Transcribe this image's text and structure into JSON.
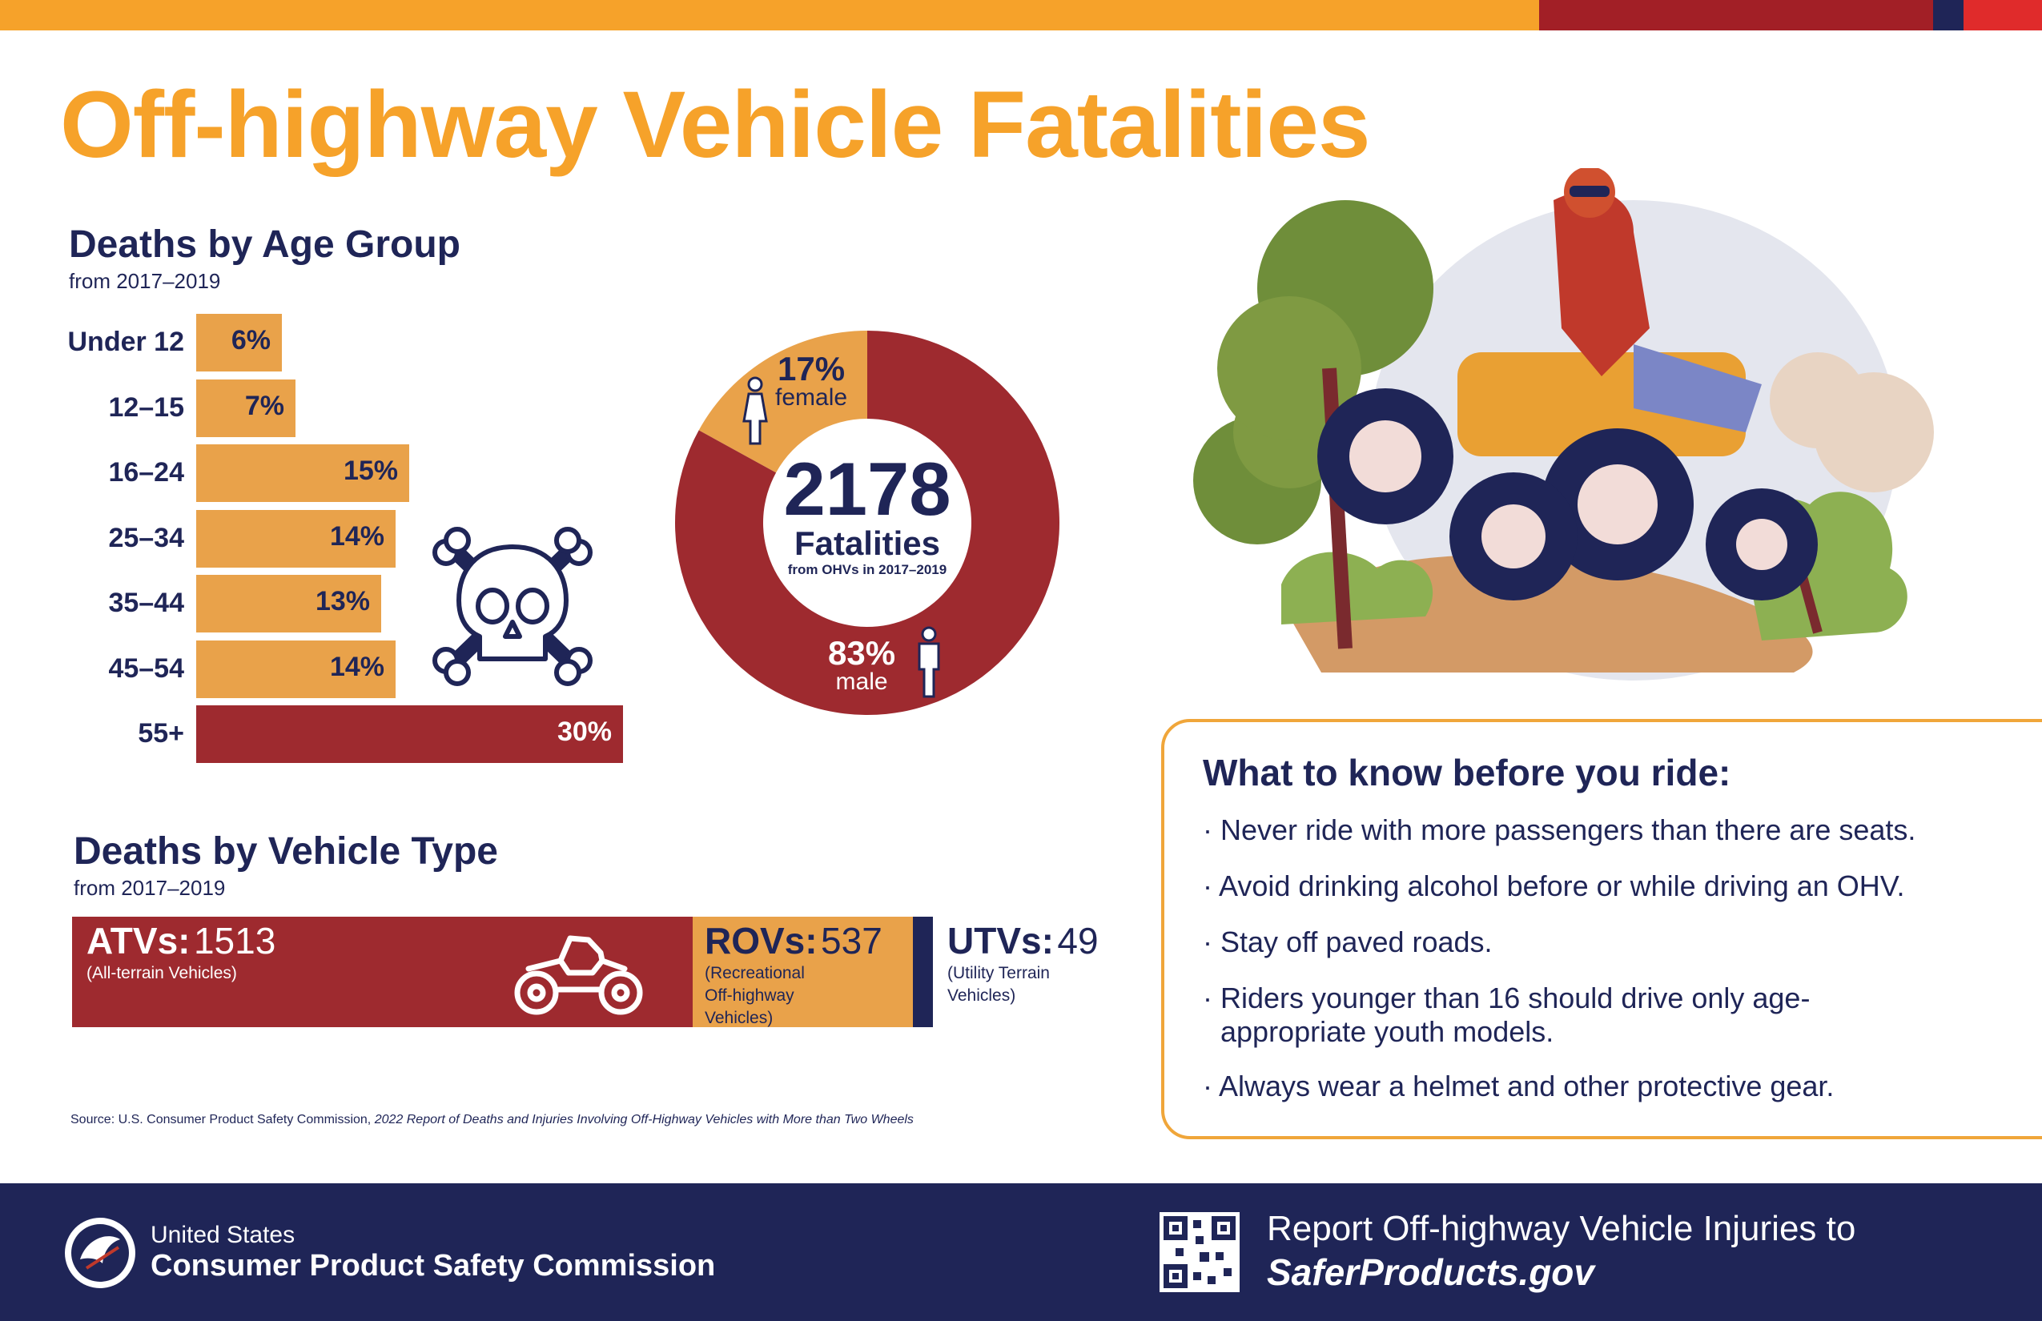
{
  "colors": {
    "orange": "#f6a22a",
    "bar_orange": "#e9a24a",
    "red": "#9e2a2f",
    "navy": "#1f2557"
  },
  "title": "Off-highway Vehicle Fatalities",
  "age": {
    "heading": "Deaths by Age Group",
    "subheading": "from 2017–2019"
  },
  "chart_data": [
    {
      "type": "bar",
      "title": "Deaths by Age Group",
      "categories": [
        "Under 12",
        "12–15",
        "16–24",
        "25–34",
        "35–44",
        "45–54",
        "55+"
      ],
      "values": [
        6,
        7,
        15,
        14,
        13,
        14,
        30
      ],
      "value_labels": [
        "6%",
        "7%",
        "15%",
        "14%",
        "13%",
        "14%",
        "30%"
      ],
      "unit": "%"
    },
    {
      "type": "pie",
      "categories": [
        "female",
        "male"
      ],
      "values": [
        17,
        83
      ],
      "value_labels": [
        "17%",
        "83%"
      ]
    },
    {
      "type": "bar",
      "title": "Deaths by Vehicle Type",
      "categories": [
        "ATVs",
        "ROVs",
        "UTVs"
      ],
      "values": [
        1513,
        537,
        49
      ]
    }
  ],
  "donut": {
    "total": "2178",
    "total_label": "Fatalities",
    "total_sub": "from OHVs in 2017–2019",
    "female_pct": "17%",
    "female_label": "female",
    "male_pct": "83%",
    "male_label": "male"
  },
  "vehicle": {
    "heading": "Deaths by Vehicle Type",
    "subheading": "from 2017–2019",
    "atv_name": "ATVs:",
    "atv_num": "1513",
    "atv_desc": "(All-terrain Vehicles)",
    "rov_name": "ROVs:",
    "rov_num": "537",
    "rov_desc1": "(Recreational",
    "rov_desc2": "Off-highway",
    "rov_desc3": "Vehicles)",
    "utv_name": "UTVs:",
    "utv_num": "49",
    "utv_desc1": "(Utility Terrain",
    "utv_desc2": "Vehicles)"
  },
  "source": {
    "prefix": "Source: U.S. Consumer Product Safety Commission, ",
    "italic": "2022 Report of Deaths and Injuries Involving Off-Highway Vehicles with More than Two Wheels"
  },
  "tips": {
    "title": "What to know before you ride:",
    "items": [
      "· Never ride with more passengers than there are seats.",
      "· Avoid drinking alcohol before or while driving an OHV.",
      "· Stay off paved roads.",
      "· Riders younger than 16 should drive only age-appropriate youth models.",
      "· Always wear a helmet and other protective gear."
    ]
  },
  "footer": {
    "org_line1": "United States",
    "org_line2": "Consumer Product Safety Commission",
    "report_line1": "Report Off-highway Vehicle Injuries to",
    "report_line2": "SaferProducts.gov"
  }
}
